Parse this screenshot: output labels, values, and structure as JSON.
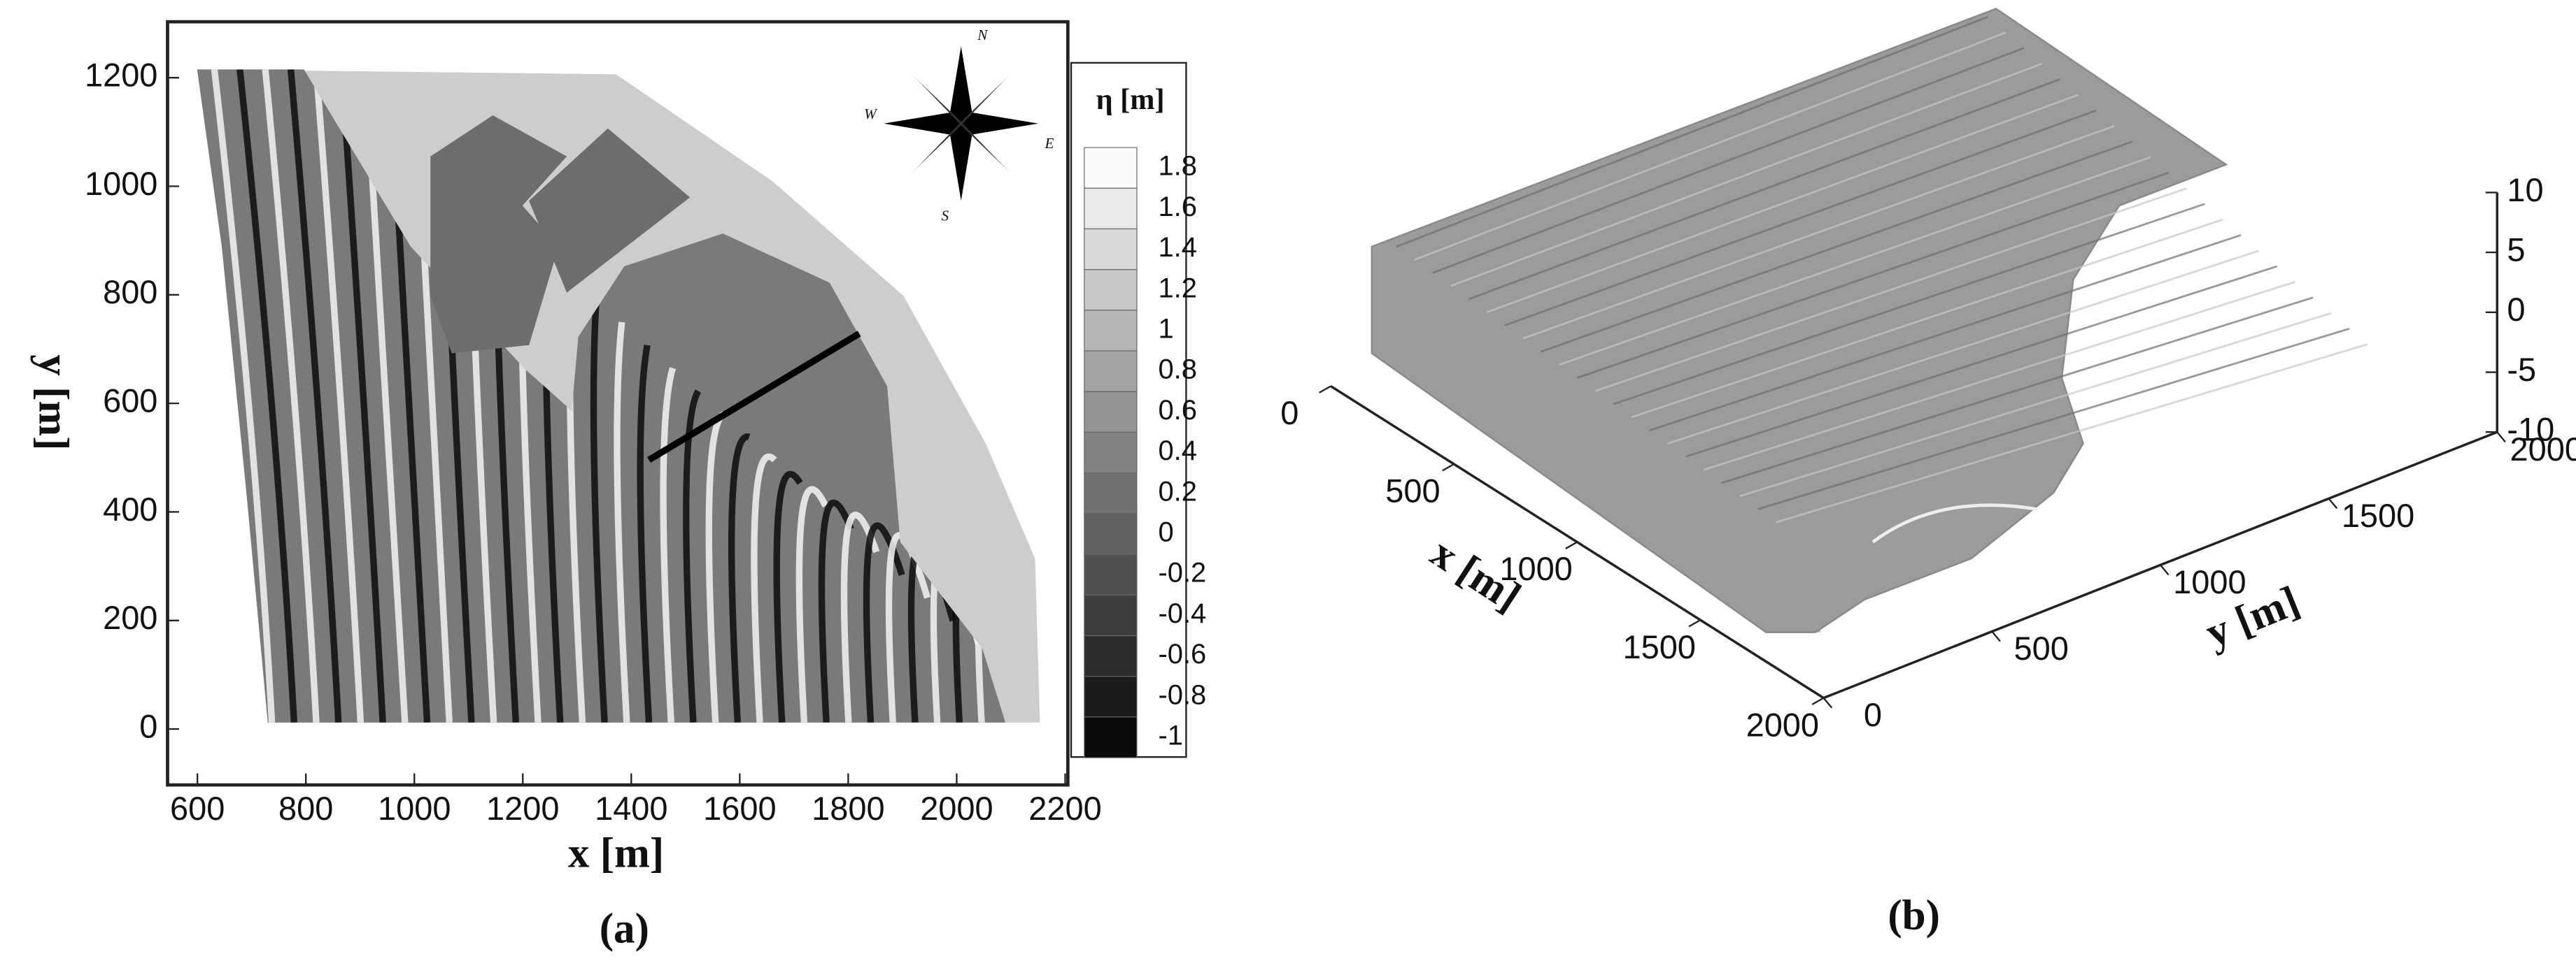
{
  "chart_data": [
    {
      "type": "contour",
      "panel_label": "(a)",
      "xlabel": "x [m]",
      "ylabel": "y [m]",
      "xlim": [
        545,
        2205
      ],
      "xticks": [
        600,
        800,
        1000,
        1200,
        1400,
        1600,
        1800,
        2000,
        2200
      ],
      "ylim": [
        -103,
        1303
      ],
      "yticks": [
        0,
        200,
        400,
        600,
        800,
        1000,
        1200
      ],
      "colorbar": {
        "title": "η [m]",
        "ticks": [
          1.8,
          1.6,
          1.4,
          1.2,
          1,
          0.8,
          0.6,
          0.4,
          0.2,
          0,
          -0.2,
          -0.4,
          -0.6,
          -0.8,
          -1
        ]
      },
      "compass": [
        "N",
        "S",
        "E",
        "W"
      ]
    },
    {
      "type": "surface3d",
      "panel_label": "(b)",
      "xlabel": "x [m]",
      "ylabel": "y [m]",
      "xlim": [
        0,
        2000
      ],
      "xticks": [
        0,
        500,
        1000,
        1500,
        2000
      ],
      "ylim": [
        0,
        2000
      ],
      "yticks": [
        0,
        500,
        1000,
        1500,
        2000
      ],
      "zlim": [
        -10,
        10
      ],
      "zticks": [
        10,
        5,
        0,
        -5,
        -10
      ]
    }
  ]
}
